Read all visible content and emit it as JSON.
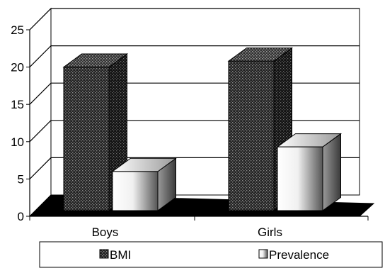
{
  "chart_data": {
    "type": "bar",
    "style": "3d-clustered-column",
    "title": "",
    "xlabel": "",
    "ylabel": "",
    "categories": [
      "Boys",
      "Girls"
    ],
    "series": [
      {
        "name": "BMI",
        "values": [
          20,
          20.8
        ],
        "pattern": "dense-dots-dark"
      },
      {
        "name": "Prevalence",
        "values": [
          6,
          9.3
        ],
        "pattern": "light-gradient"
      }
    ],
    "ylim": [
      0,
      25
    ],
    "yticks": [
      0,
      5,
      10,
      15,
      20,
      25
    ],
    "grid": true,
    "legend_position": "bottom"
  }
}
